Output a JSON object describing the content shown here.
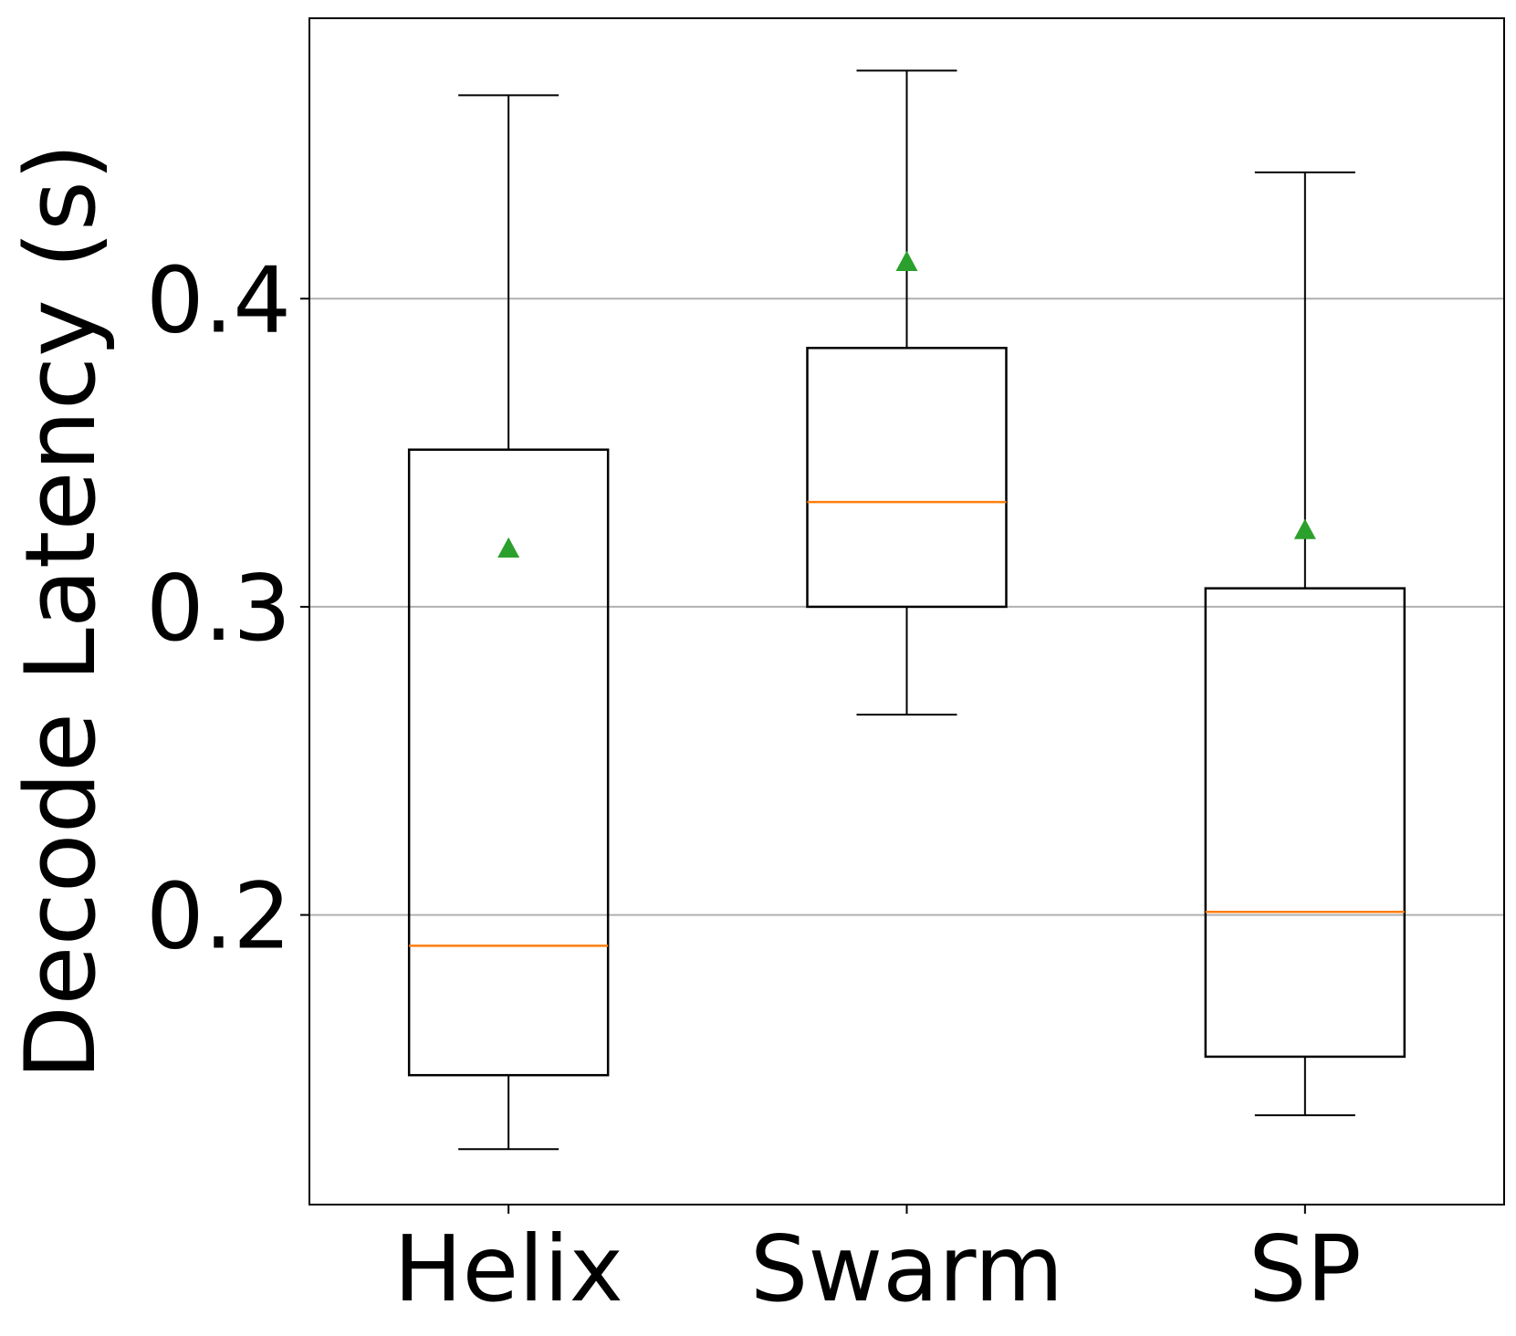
{
  "chart_data": {
    "type": "box",
    "categories": [
      "Helix",
      "Swarm",
      "SP"
    ],
    "ylabel": "Decode Latency (s)",
    "xlabel": "",
    "ylim": [
      0.106,
      0.491
    ],
    "yticks": [
      0.2,
      0.3,
      0.4
    ],
    "ytick_labels": [
      "0.2",
      "0.3",
      "0.4"
    ],
    "grid": "y-major",
    "boxes": [
      {
        "whisker_low": 0.124,
        "q1": 0.148,
        "median": 0.19,
        "q3": 0.351,
        "whisker_high": 0.466,
        "mean": 0.319
      },
      {
        "whisker_low": 0.265,
        "q1": 0.3,
        "median": 0.334,
        "q3": 0.384,
        "whisker_high": 0.474,
        "mean": 0.412
      },
      {
        "whisker_low": 0.135,
        "q1": 0.154,
        "median": 0.201,
        "q3": 0.306,
        "whisker_high": 0.441,
        "mean": 0.325
      }
    ],
    "colors": {
      "box": "#000000",
      "median": "#ff7f0e",
      "mean_marker": "#2ca02c",
      "grid": "#b0b0b0"
    }
  }
}
